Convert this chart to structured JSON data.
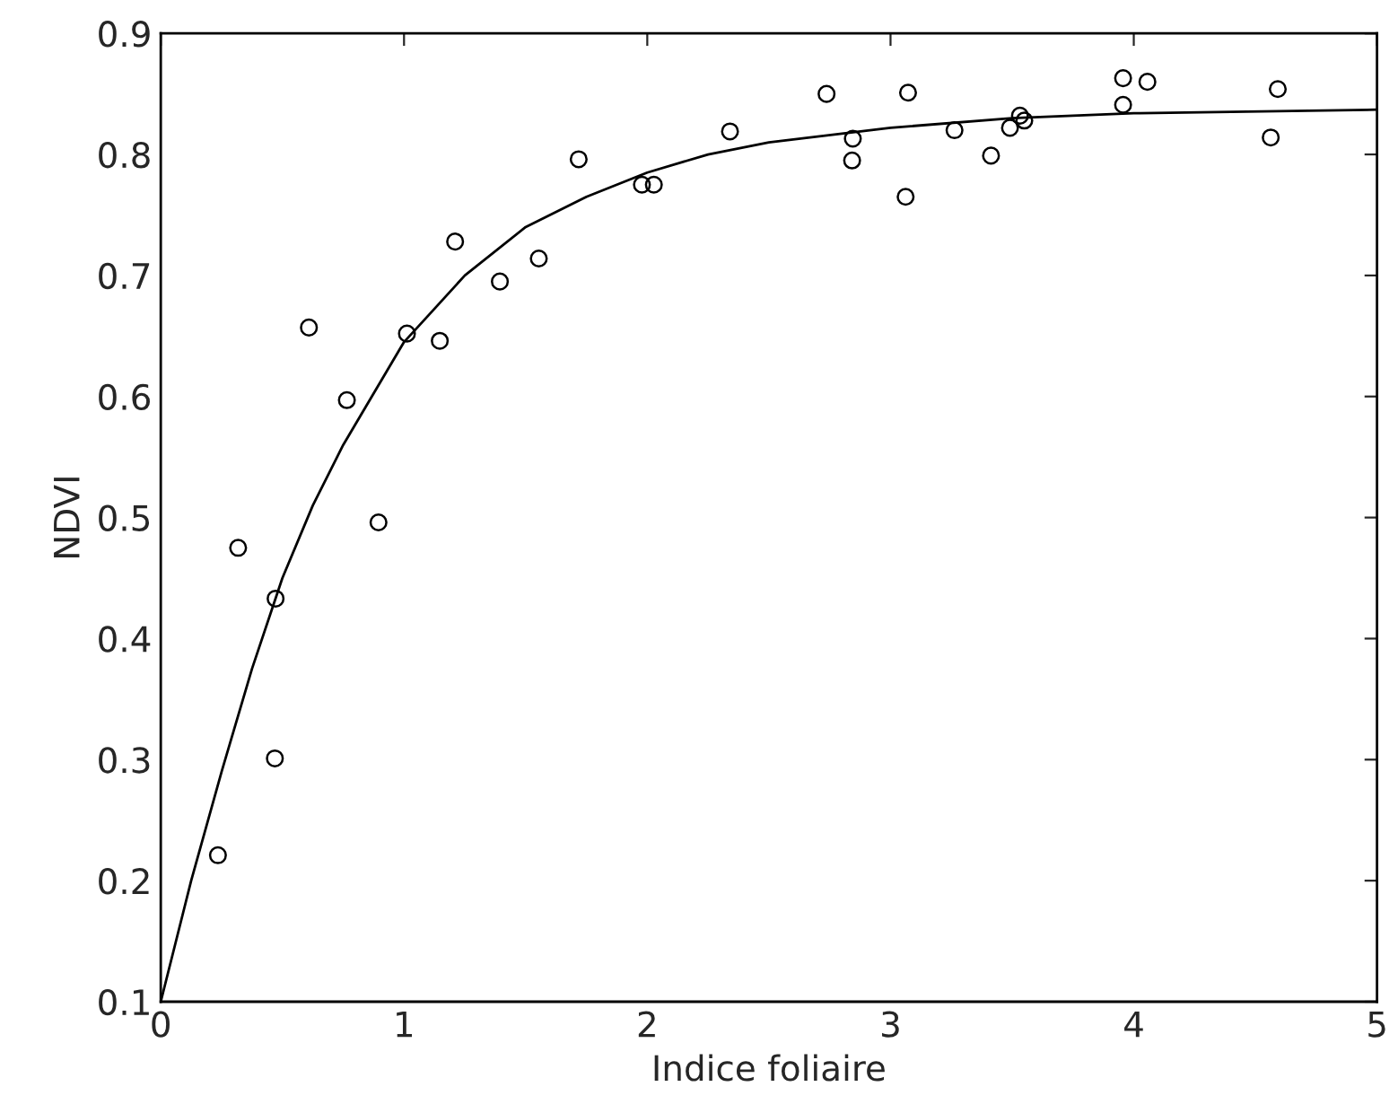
{
  "chart_data": {
    "type": "scatter",
    "xlabel": "Indice foliaire",
    "ylabel": "NDVI",
    "xlim": [
      0,
      5
    ],
    "ylim": [
      0.1,
      0.9
    ],
    "xticks": [
      0,
      1,
      2,
      3,
      4,
      5
    ],
    "yticks": [
      0.1,
      0.2,
      0.3,
      0.4,
      0.5,
      0.6,
      0.7,
      0.8,
      0.9
    ],
    "grid": false,
    "legend": false,
    "series": [
      {
        "marker": "circle",
        "color": "#000000",
        "x": [
          0.235,
          0.318,
          0.472,
          0.469,
          0.609,
          0.765,
          0.895,
          1.012,
          1.147,
          1.21,
          1.394,
          1.554,
          1.718,
          1.978,
          2.027,
          2.34,
          2.737,
          2.845,
          2.842,
          3.062,
          3.072,
          3.263,
          3.413,
          3.491,
          3.532,
          3.55,
          3.956,
          3.956,
          4.056,
          4.563,
          4.592
        ],
        "values": [
          0.221,
          0.475,
          0.433,
          0.301,
          0.657,
          0.597,
          0.496,
          0.652,
          0.646,
          0.728,
          0.695,
          0.714,
          0.796,
          0.775,
          0.775,
          0.819,
          0.85,
          0.813,
          0.795,
          0.765,
          0.851,
          0.82,
          0.799,
          0.822,
          0.832,
          0.828,
          0.863,
          0.841,
          0.86,
          0.814,
          0.854
        ]
      },
      {
        "type": "line",
        "marker": "none",
        "line_style": "solid",
        "color": "#000000",
        "x": [
          0,
          0.125,
          0.25,
          0.375,
          0.5,
          0.625,
          0.75,
          1,
          1.25,
          1.5,
          1.75,
          2,
          2.25,
          2.5,
          3,
          3.5,
          4,
          5
        ],
        "values": [
          0.1,
          0.2,
          0.29,
          0.375,
          0.45,
          0.51,
          0.56,
          0.645,
          0.7,
          0.74,
          0.765,
          0.785,
          0.8,
          0.81,
          0.822,
          0.83,
          0.834,
          0.837
        ]
      }
    ]
  }
}
